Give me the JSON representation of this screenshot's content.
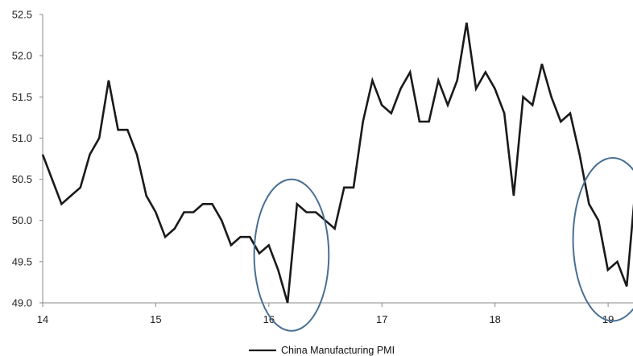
{
  "chart_data": {
    "type": "line",
    "title": "",
    "xlabel": "",
    "ylabel": "",
    "xlim": [
      14,
      19.22
    ],
    "ylim": [
      49.0,
      52.5
    ],
    "x_ticks": [
      14,
      15,
      16,
      17,
      18,
      19
    ],
    "x_tick_labels": [
      "14",
      "15",
      "16",
      "17",
      "18",
      "19"
    ],
    "y_ticks": [
      49.0,
      49.5,
      50.0,
      50.5,
      51.0,
      51.5,
      52.0,
      52.5
    ],
    "y_tick_labels": [
      "49.0",
      "49.5",
      "50.0",
      "50.5",
      "51.0",
      "51.5",
      "52.0",
      "52.5"
    ],
    "grid": false,
    "legend_position": "bottom-center",
    "colors": {
      "line": "#1a1a1a",
      "highlight": "#4a6f93",
      "axis": "#888888"
    },
    "series": [
      {
        "name": "China Manufacturing PMI",
        "values": [
          50.8,
          50.5,
          50.2,
          50.3,
          50.4,
          50.8,
          51.0,
          51.7,
          51.1,
          51.1,
          50.8,
          50.3,
          50.1,
          49.8,
          49.9,
          50.1,
          50.1,
          50.2,
          50.2,
          50.0,
          49.7,
          49.8,
          49.8,
          49.6,
          49.7,
          49.4,
          49.0,
          50.2,
          50.1,
          50.1,
          50.0,
          49.9,
          50.4,
          50.4,
          51.2,
          51.7,
          51.4,
          51.3,
          51.6,
          51.8,
          51.2,
          51.2,
          51.7,
          51.4,
          51.7,
          52.4,
          51.6,
          51.8,
          51.6,
          51.3,
          50.3,
          51.5,
          51.4,
          51.9,
          51.5,
          51.2,
          51.3,
          50.8,
          50.2,
          50.0,
          49.4,
          49.5,
          49.2,
          50.5
        ]
      }
    ],
    "x_start": 14.0,
    "x_step": 0.0833,
    "highlights": [
      {
        "center_x": 16.2,
        "center_y": 49.58,
        "radius_x": 0.33,
        "radius_y": 0.92
      },
      {
        "center_x": 19.04,
        "center_y": 49.77,
        "radius_x": 0.35,
        "radius_y": 0.99
      }
    ]
  }
}
